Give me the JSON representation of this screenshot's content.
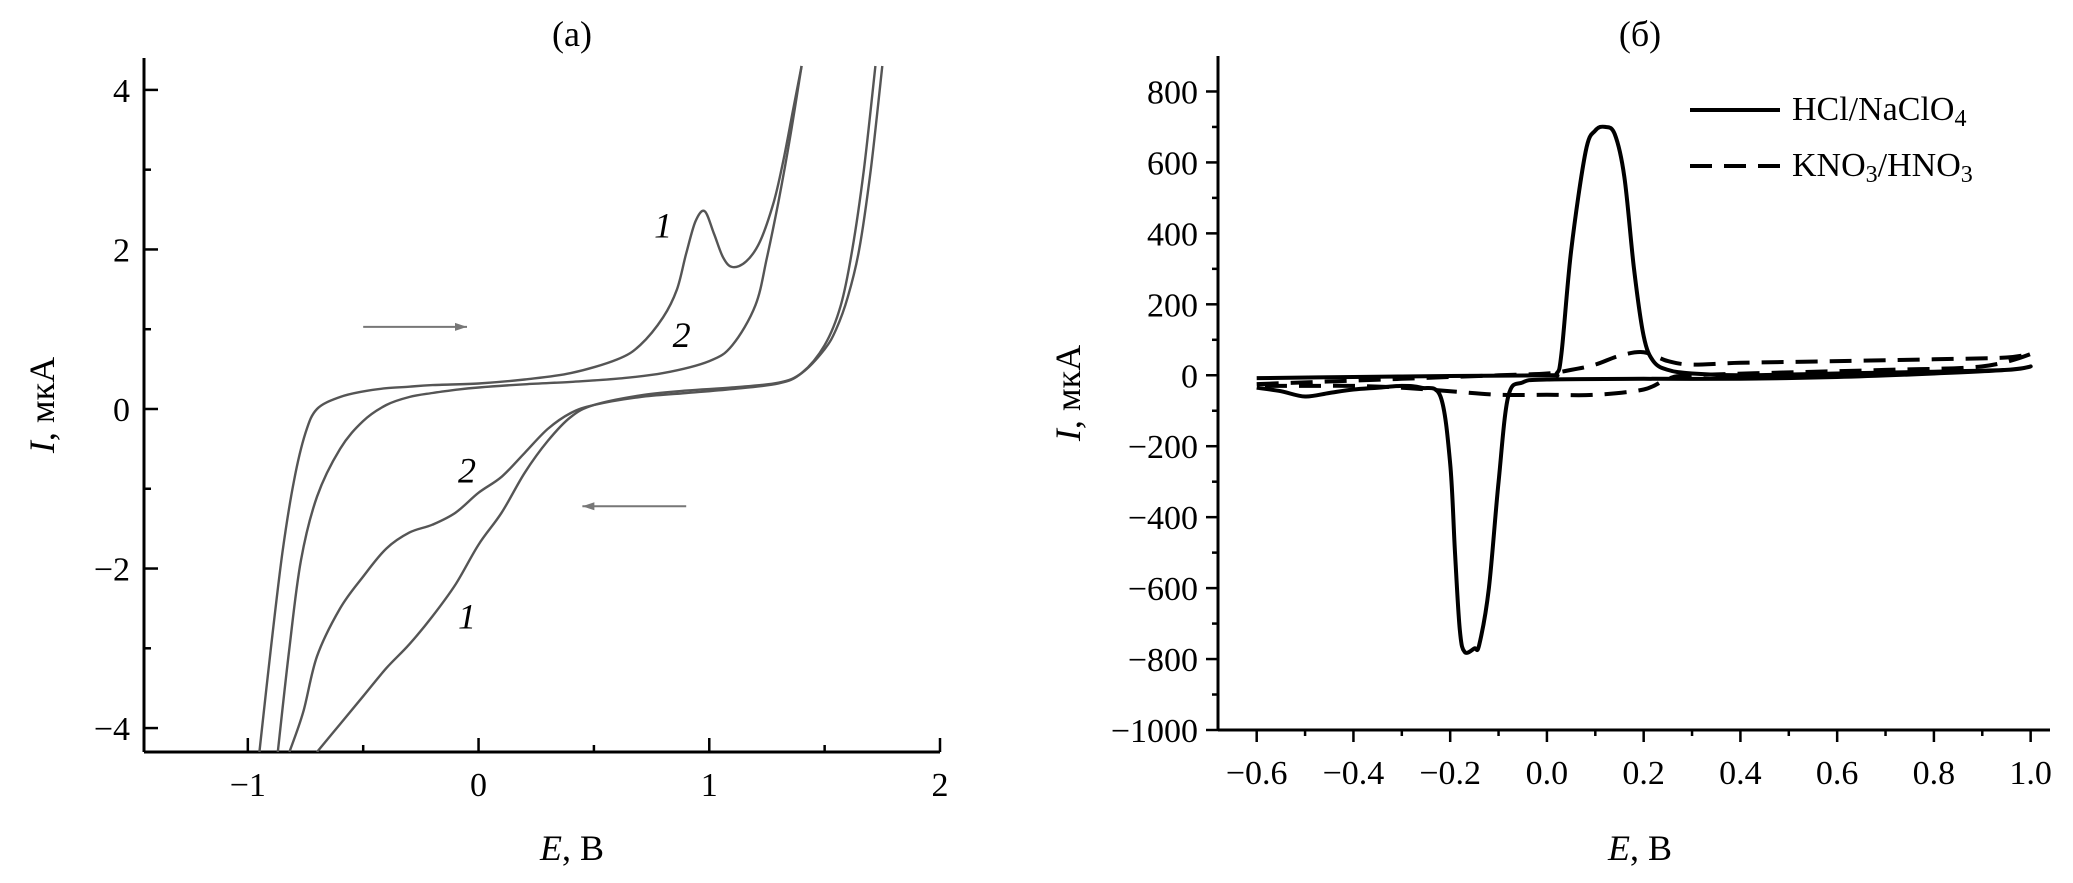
{
  "chart_data": [
    {
      "type": "line",
      "panel_label": "(a)",
      "xlabel_var": "E",
      "xlabel_unit": ", В",
      "ylabel_var": "I",
      "ylabel_unit": ", мкА",
      "xlim": [
        -1.45,
        2.0
      ],
      "ylim": [
        -4.3,
        4.4
      ],
      "xticks": [
        -1,
        0,
        1,
        2
      ],
      "yticks": [
        -4,
        -2,
        0,
        2,
        4
      ],
      "series": [
        {
          "name": "1",
          "x": [
            -0.95,
            -0.9,
            -0.85,
            -0.8,
            -0.75,
            -0.7,
            -0.6,
            -0.5,
            -0.4,
            -0.3,
            -0.2,
            0.0,
            0.2,
            0.4,
            0.6,
            0.7,
            0.8,
            0.86,
            0.9,
            0.94,
            0.98,
            1.02,
            1.06,
            1.1,
            1.16,
            1.22,
            1.28,
            1.32,
            1.36,
            1.4
          ],
          "y": [
            -4.3,
            -3.0,
            -1.8,
            -0.9,
            -0.3,
            0.0,
            0.15,
            0.22,
            0.26,
            0.28,
            0.3,
            0.32,
            0.37,
            0.45,
            0.62,
            0.8,
            1.15,
            1.5,
            1.95,
            2.35,
            2.48,
            2.2,
            1.9,
            1.78,
            1.85,
            2.1,
            2.6,
            3.1,
            3.7,
            4.3
          ]
        },
        {
          "name": "1",
          "x": [
            1.75,
            1.7,
            1.65,
            1.6,
            1.55,
            1.5,
            1.4,
            1.3,
            1.1,
            0.9,
            0.7,
            0.5,
            0.4,
            0.3,
            0.2,
            0.1,
            0.0,
            -0.1,
            -0.2,
            -0.3,
            -0.4,
            -0.5,
            -0.6,
            -0.7
          ],
          "y": [
            4.3,
            3.0,
            2.0,
            1.4,
            1.0,
            0.75,
            0.45,
            0.33,
            0.27,
            0.23,
            0.17,
            0.05,
            -0.1,
            -0.4,
            -0.8,
            -1.3,
            -1.7,
            -2.2,
            -2.6,
            -2.95,
            -3.25,
            -3.6,
            -3.95,
            -4.3
          ]
        },
        {
          "name": "2",
          "x": [
            -0.87,
            -0.82,
            -0.77,
            -0.7,
            -0.6,
            -0.5,
            -0.4,
            -0.3,
            -0.2,
            -0.1,
            0.0,
            0.2,
            0.4,
            0.6,
            0.8,
            1.0,
            1.1,
            1.2,
            1.25,
            1.3,
            1.35,
            1.4
          ],
          "y": [
            -4.3,
            -3.0,
            -1.9,
            -1.1,
            -0.5,
            -0.15,
            0.05,
            0.15,
            0.2,
            0.24,
            0.27,
            0.31,
            0.34,
            0.38,
            0.45,
            0.6,
            0.8,
            1.3,
            1.9,
            2.6,
            3.4,
            4.3
          ]
        },
        {
          "name": "2",
          "x": [
            1.72,
            1.67,
            1.62,
            1.57,
            1.5,
            1.4,
            1.3,
            1.1,
            0.9,
            0.7,
            0.5,
            0.4,
            0.3,
            0.2,
            0.1,
            0.0,
            -0.1,
            -0.2,
            -0.3,
            -0.4,
            -0.5,
            -0.6,
            -0.7,
            -0.76,
            -0.82
          ],
          "y": [
            4.3,
            3.0,
            2.0,
            1.3,
            0.8,
            0.45,
            0.32,
            0.25,
            0.2,
            0.15,
            0.05,
            -0.05,
            -0.25,
            -0.55,
            -0.85,
            -1.05,
            -1.3,
            -1.45,
            -1.55,
            -1.75,
            -2.1,
            -2.5,
            -3.1,
            -3.8,
            -4.3
          ]
        }
      ],
      "annotations": [
        {
          "text": "1",
          "x": 0.8,
          "y": 2.15
        },
        {
          "text": "2",
          "x": 0.88,
          "y": 0.78
        },
        {
          "text": "2",
          "x": -0.05,
          "y": -0.92
        },
        {
          "text": "1",
          "x": -0.05,
          "y": -2.75
        }
      ],
      "arrows": [
        {
          "x1": -0.5,
          "y1": 1.03,
          "x2": -0.05,
          "y2": 1.03
        },
        {
          "x1": 0.9,
          "y1": -1.22,
          "x2": 0.45,
          "y2": -1.22
        }
      ]
    },
    {
      "type": "line",
      "panel_label": "(б)",
      "xlabel_var": "E",
      "xlabel_unit": ", В",
      "ylabel_var": "I",
      "ylabel_unit": ", мкА",
      "xlim": [
        -0.68,
        1.04
      ],
      "ylim": [
        -1000,
        900
      ],
      "xticks": [
        -0.6,
        -0.4,
        -0.2,
        0.0,
        0.2,
        0.4,
        0.6,
        0.8,
        1.0
      ],
      "xtick_labels": [
        "−0.6",
        "−0.4",
        "−0.2",
        "0.0",
        "0.2",
        "0.4",
        "0.6",
        "0.8",
        "1.0"
      ],
      "yticks": [
        -1000,
        -800,
        -600,
        -400,
        -200,
        0,
        200,
        400,
        600,
        800
      ],
      "ytick_labels": [
        "−1000",
        "−800",
        "−600",
        "−400",
        "−200",
        "0",
        "200",
        "400",
        "600",
        "800"
      ],
      "legend_position": "top-right",
      "series": [
        {
          "name_parts": [
            "HCl/NaClO",
            "4",
            ""
          ],
          "style": "solid",
          "x": [
            -0.6,
            -0.4,
            -0.2,
            0.0,
            0.02,
            0.03,
            0.05,
            0.08,
            0.1,
            0.12,
            0.14,
            0.16,
            0.18,
            0.2,
            0.22,
            0.25,
            0.3,
            0.4,
            0.6,
            0.8,
            0.95,
            1.0,
            0.95,
            0.8,
            0.6,
            0.4,
            0.2,
            0.0,
            -0.05,
            -0.08,
            -0.1,
            -0.12,
            -0.14,
            -0.15,
            -0.17,
            -0.18,
            -0.19,
            -0.2,
            -0.22,
            -0.26,
            -0.3,
            -0.35,
            -0.4,
            -0.45,
            -0.5,
            -0.55,
            -0.6
          ],
          "y": [
            -8,
            -5,
            -2,
            0,
            5,
            60,
            350,
            630,
            690,
            700,
            680,
            560,
            300,
            110,
            40,
            15,
            5,
            0,
            5,
            10,
            15,
            25,
            15,
            5,
            -5,
            -10,
            -10,
            -12,
            -20,
            -60,
            -300,
            -600,
            -760,
            -770,
            -780,
            -720,
            -500,
            -250,
            -60,
            -35,
            -30,
            -35,
            -40,
            -50,
            -60,
            -45,
            -35
          ]
        },
        {
          "name_parts": [
            "KNO",
            "3",
            "/HNO",
            "3"
          ],
          "style": "dashed",
          "x": [
            -0.6,
            -0.5,
            -0.4,
            -0.3,
            -0.2,
            -0.1,
            0.0,
            0.05,
            0.1,
            0.15,
            0.2,
            0.25,
            0.3,
            0.4,
            0.6,
            0.8,
            0.95,
            1.0,
            0.9,
            0.7,
            0.5,
            0.3,
            0.25,
            0.2,
            0.1,
            0.0,
            -0.1,
            -0.2,
            -0.3,
            -0.4,
            -0.5,
            -0.6
          ],
          "y": [
            -25,
            -20,
            -15,
            -10,
            -5,
            0,
            5,
            15,
            30,
            55,
            65,
            40,
            30,
            35,
            40,
            45,
            50,
            60,
            25,
            15,
            8,
            0,
            -10,
            -40,
            -55,
            -55,
            -55,
            -45,
            -35,
            -30,
            -30,
            -30
          ]
        }
      ]
    }
  ]
}
